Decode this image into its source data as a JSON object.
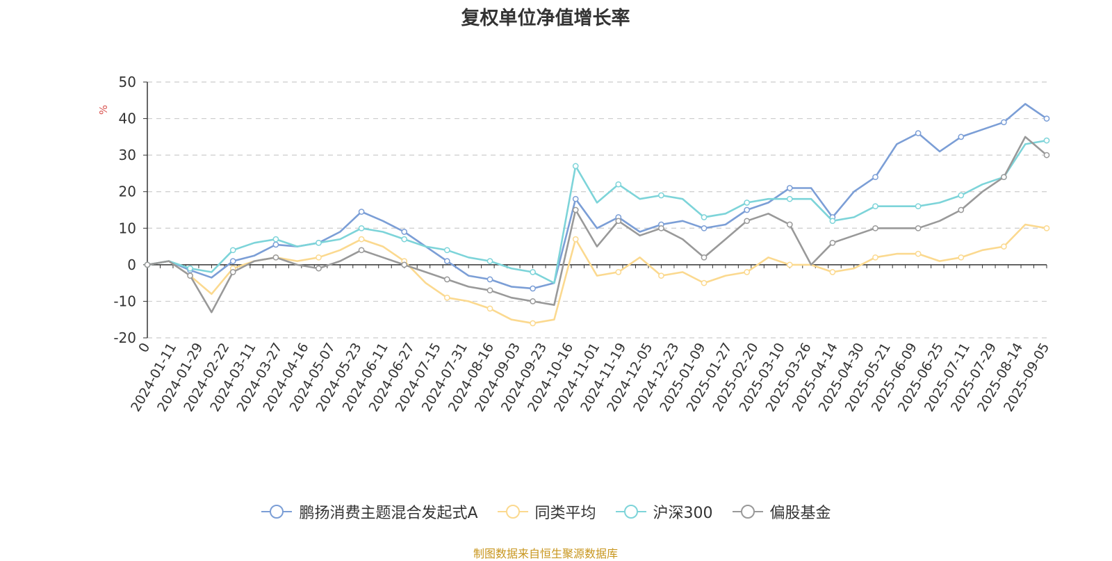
{
  "chart_data": {
    "type": "line",
    "title": "复权单位净值增长率",
    "ylabel": "%",
    "ylim": [
      -20,
      50
    ],
    "yticks": [
      -20,
      -10,
      0,
      10,
      20,
      30,
      40,
      50
    ],
    "x_tick_labels": [
      "0",
      "2024-01-11",
      "2024-01-29",
      "2024-02-22",
      "2024-03-11",
      "2024-03-27",
      "2024-04-16",
      "2024-05-07",
      "2024-05-23",
      "2024-06-11",
      "2024-06-27",
      "2024-07-15",
      "2024-07-31",
      "2024-08-16",
      "2024-09-03",
      "2024-09-23",
      "2024-10-16",
      "2024-11-01",
      "2024-11-19",
      "2024-12-05",
      "2024-12-23",
      "2025-01-09",
      "2025-01-27",
      "2025-02-20",
      "2025-03-10",
      "2025-03-26",
      "2025-04-14",
      "2025-04-30",
      "2025-05-21",
      "2025-06-09",
      "2025-06-25",
      "2025-07-11",
      "2025-07-29",
      "2025-08-14",
      "2025-09-05"
    ],
    "grid": true,
    "legend_position": "bottom",
    "series": [
      {
        "name": "鹏扬消费主题混合发起式A",
        "color": "#7b9ed6",
        "values": [
          0,
          1,
          -1.5,
          -3.5,
          1,
          2.5,
          5.5,
          5,
          6,
          9,
          14.5,
          12,
          9,
          5,
          1,
          -3,
          -4,
          -6,
          -6.5,
          -5,
          18,
          10,
          13,
          9,
          11,
          12,
          10,
          11,
          15,
          17,
          21,
          21,
          13,
          20,
          24,
          33,
          36,
          31,
          35,
          37,
          39,
          44,
          40
        ]
      },
      {
        "name": "同类平均",
        "color": "#fbd98f",
        "values": [
          0,
          1,
          -3,
          -8,
          -1,
          1,
          2,
          1,
          2,
          4,
          7,
          5,
          1,
          -5,
          -9,
          -10,
          -12,
          -15,
          -16,
          -15,
          7,
          -3,
          -2,
          2,
          -3,
          -2,
          -5,
          -3,
          -2,
          2,
          0,
          0,
          -2,
          -1,
          2,
          3,
          3,
          1,
          2,
          4,
          5,
          11,
          10
        ]
      },
      {
        "name": "沪深300",
        "color": "#7dd4d9",
        "values": [
          0,
          1,
          -1,
          -2,
          4,
          6,
          7,
          5,
          6,
          7,
          10,
          9,
          7,
          5,
          4,
          2,
          1,
          -1,
          -2,
          -5,
          27,
          17,
          22,
          18,
          19,
          18,
          13,
          14,
          17,
          18,
          18,
          18,
          12,
          13,
          16,
          16,
          16,
          17,
          19,
          22,
          24,
          33,
          34
        ]
      },
      {
        "name": "偏股基金",
        "color": "#999999",
        "values": [
          0,
          1,
          -3,
          -13,
          -2,
          1,
          2,
          0,
          -1,
          1,
          4,
          2,
          0,
          -2,
          -4,
          -6,
          -7,
          -9,
          -10,
          -11,
          15,
          5,
          12,
          8,
          10,
          7,
          2,
          7,
          12,
          14,
          11,
          0,
          6,
          8,
          10,
          10,
          10,
          12,
          15,
          20,
          24,
          35,
          30
        ]
      }
    ]
  },
  "legend": {
    "items": [
      {
        "label": "鹏扬消费主题混合发起式A",
        "color": "#7b9ed6"
      },
      {
        "label": "同类平均",
        "color": "#fbd98f"
      },
      {
        "label": "沪深300",
        "color": "#7dd4d9"
      },
      {
        "label": "偏股基金",
        "color": "#999999"
      }
    ]
  },
  "source_note": "制图数据来自恒生聚源数据库",
  "colors": {
    "axis": "#333333",
    "grid": "#cccccc",
    "ylabel": "#d9534f"
  }
}
